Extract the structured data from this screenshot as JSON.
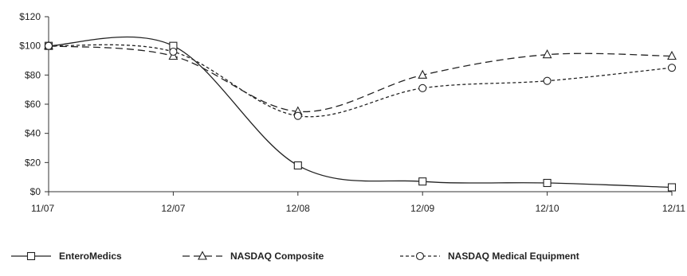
{
  "chart_data": {
    "type": "line",
    "categories": [
      "11/07",
      "12/07",
      "12/08",
      "12/09",
      "12/10",
      "12/11"
    ],
    "y_ticks": [
      "$0",
      "$20",
      "$40",
      "$60",
      "$80",
      "$100",
      "$120"
    ],
    "ylim": [
      0,
      120
    ],
    "grid": false,
    "legend_position": "bottom",
    "series": [
      {
        "name": "EnteroMedics",
        "values": [
          100,
          100,
          18,
          7,
          6,
          3
        ],
        "marker": "square",
        "dash": "solid",
        "color": "#222222"
      },
      {
        "name": "NASDAQ Composite",
        "values": [
          100,
          93,
          55,
          80,
          94,
          93
        ],
        "marker": "triangle",
        "dash": "long",
        "color": "#222222"
      },
      {
        "name": "NASDAQ Medical Equipment",
        "values": [
          100,
          96,
          52,
          71,
          76,
          85
        ],
        "marker": "circle",
        "dash": "short",
        "color": "#222222"
      }
    ]
  }
}
